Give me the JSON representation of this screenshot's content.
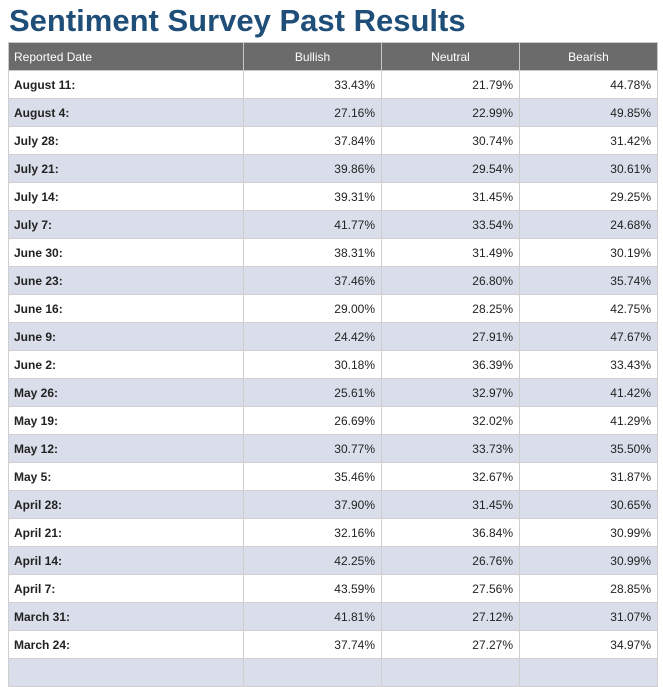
{
  "page": {
    "title": "Sentiment Survey Past Results"
  },
  "chart_data": {
    "type": "table",
    "title": "Sentiment Survey Past Results",
    "columns": [
      "Reported Date",
      "Bullish",
      "Neutral",
      "Bearish"
    ],
    "rows": [
      [
        "August 11:",
        "33.43%",
        "21.79%",
        "44.78%"
      ],
      [
        "August 4:",
        "27.16%",
        "22.99%",
        "49.85%"
      ],
      [
        "July 28:",
        "37.84%",
        "30.74%",
        "31.42%"
      ],
      [
        "July 21:",
        "39.86%",
        "29.54%",
        "30.61%"
      ],
      [
        "July 14:",
        "39.31%",
        "31.45%",
        "29.25%"
      ],
      [
        "July 7:",
        "41.77%",
        "33.54%",
        "24.68%"
      ],
      [
        "June 30:",
        "38.31%",
        "31.49%",
        "30.19%"
      ],
      [
        "June 23:",
        "37.46%",
        "26.80%",
        "35.74%"
      ],
      [
        "June 16:",
        "29.00%",
        "28.25%",
        "42.75%"
      ],
      [
        "June 9:",
        "24.42%",
        "27.91%",
        "47.67%"
      ],
      [
        "June 2:",
        "30.18%",
        "36.39%",
        "33.43%"
      ],
      [
        "May 26:",
        "25.61%",
        "32.97%",
        "41.42%"
      ],
      [
        "May 19:",
        "26.69%",
        "32.02%",
        "41.29%"
      ],
      [
        "May 12:",
        "30.77%",
        "33.73%",
        "35.50%"
      ],
      [
        "May 5:",
        "35.46%",
        "32.67%",
        "31.87%"
      ],
      [
        "April 28:",
        "37.90%",
        "31.45%",
        "30.65%"
      ],
      [
        "April 21:",
        "32.16%",
        "36.84%",
        "30.99%"
      ],
      [
        "April 14:",
        "42.25%",
        "26.76%",
        "30.99%"
      ],
      [
        "April 7:",
        "43.59%",
        "27.56%",
        "28.85%"
      ],
      [
        "March 31:",
        "41.81%",
        "27.12%",
        "31.07%"
      ],
      [
        "March 24:",
        "37.74%",
        "27.27%",
        "34.97%"
      ],
      [
        "",
        "",
        "",
        ""
      ]
    ]
  }
}
